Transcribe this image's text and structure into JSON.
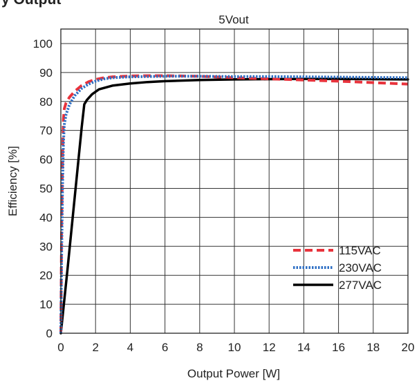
{
  "chart_data": {
    "type": "line",
    "heading": "y Output",
    "title": "5Vout",
    "xlabel": "Output Power [W]",
    "ylabel": "Efficiency [%]",
    "xlim": [
      0,
      20
    ],
    "ylim": [
      0,
      105
    ],
    "x_ticks": [
      "0",
      "2",
      "4",
      "6",
      "8",
      "10",
      "12",
      "14",
      "16",
      "18",
      "20"
    ],
    "y_ticks": [
      "0",
      "10",
      "20",
      "30",
      "40",
      "50",
      "60",
      "70",
      "80",
      "90",
      "100"
    ],
    "grid": true,
    "legend_position": "bottom-right",
    "series": [
      {
        "name": "115VAC",
        "color": "#e8333c",
        "style": "dashed",
        "points": [
          [
            0,
            0
          ],
          [
            0.05,
            40
          ],
          [
            0.1,
            62
          ],
          [
            0.15,
            74
          ],
          [
            0.2,
            77.5
          ],
          [
            0.3,
            79.5
          ],
          [
            0.5,
            81.5
          ],
          [
            0.8,
            83.5
          ],
          [
            1.2,
            85.5
          ],
          [
            1.6,
            86.8
          ],
          [
            2,
            87.6
          ],
          [
            2.5,
            88.2
          ],
          [
            3,
            88.5
          ],
          [
            4,
            88.8
          ],
          [
            5,
            88.9
          ],
          [
            6,
            88.9
          ],
          [
            8,
            88.7
          ],
          [
            10,
            88.2
          ],
          [
            12,
            87.8
          ],
          [
            14,
            87.4
          ],
          [
            16,
            87
          ],
          [
            18,
            86.5
          ],
          [
            20,
            86
          ]
        ]
      },
      {
        "name": "230VAC",
        "color": "#2e6fc4",
        "style": "dotted",
        "points": [
          [
            0,
            0
          ],
          [
            0.05,
            30
          ],
          [
            0.1,
            52
          ],
          [
            0.15,
            66
          ],
          [
            0.2,
            72
          ],
          [
            0.3,
            75.5
          ],
          [
            0.5,
            79
          ],
          [
            0.8,
            82
          ],
          [
            1.2,
            84.5
          ],
          [
            1.6,
            86
          ],
          [
            2,
            87
          ],
          [
            2.5,
            87.8
          ],
          [
            3,
            88.2
          ],
          [
            4,
            88.5
          ],
          [
            5,
            88.6
          ],
          [
            6,
            88.7
          ],
          [
            8,
            88.7
          ],
          [
            10,
            88.6
          ],
          [
            12,
            88.6
          ],
          [
            14,
            88.5
          ],
          [
            16,
            88.4
          ],
          [
            18,
            88.3
          ],
          [
            20,
            88.2
          ]
        ]
      },
      {
        "name": "277VAC",
        "color": "#000000",
        "style": "solid",
        "points": [
          [
            0,
            0
          ],
          [
            0.4,
            23
          ],
          [
            0.8,
            47
          ],
          [
            1.2,
            71
          ],
          [
            1.35,
            79
          ],
          [
            1.5,
            80.5
          ],
          [
            1.8,
            82.5
          ],
          [
            2.2,
            84.2
          ],
          [
            3,
            85.5
          ],
          [
            4,
            86.2
          ],
          [
            5,
            86.7
          ],
          [
            6,
            87
          ],
          [
            8,
            87.4
          ],
          [
            10,
            87.6
          ],
          [
            12,
            87.7
          ],
          [
            14,
            87.8
          ],
          [
            16,
            87.8
          ],
          [
            18,
            87.7
          ],
          [
            20,
            87.6
          ]
        ]
      }
    ]
  }
}
